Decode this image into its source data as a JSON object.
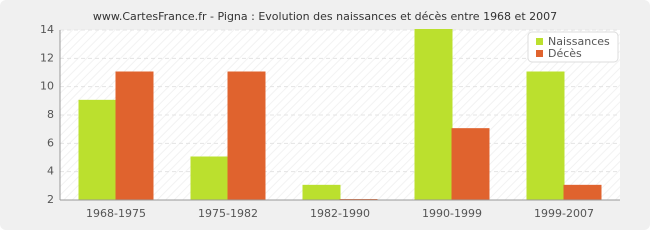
{
  "chart_data": {
    "type": "bar",
    "title": "www.CartesFrance.fr - Pigna : Evolution des naissances et décès entre 1968 et 2007",
    "categories": [
      "1968-1975",
      "1975-1982",
      "1982-1990",
      "1990-1999",
      "1999-2007"
    ],
    "series": [
      {
        "name": "Naissances",
        "color": "#bbe02e",
        "values": [
          9,
          5,
          3,
          14,
          11
        ]
      },
      {
        "name": "Décès",
        "color": "#e0632e",
        "values": [
          11,
          11,
          2,
          7,
          3
        ]
      }
    ],
    "ylim": [
      2,
      14
    ],
    "yticks": [
      2,
      4,
      6,
      8,
      10,
      12,
      14
    ],
    "grid": true,
    "legend": "top-right"
  }
}
